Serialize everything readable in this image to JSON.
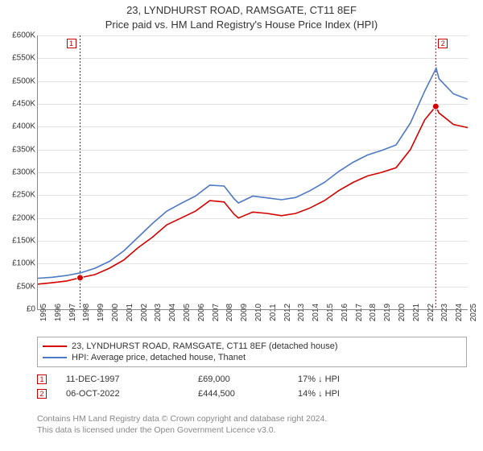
{
  "title_line1": "23, LYNDHURST ROAD, RAMSGATE, CT11 8EF",
  "title_line2": "Price paid vs. HM Land Registry's House Price Index (HPI)",
  "chart": {
    "type": "line",
    "x_min": 1995,
    "x_max": 2025,
    "x_ticks": [
      1995,
      1996,
      1997,
      1998,
      1999,
      2000,
      2001,
      2002,
      2003,
      2004,
      2005,
      2006,
      2007,
      2008,
      2009,
      2010,
      2011,
      2012,
      2013,
      2014,
      2015,
      2016,
      2017,
      2018,
      2019,
      2020,
      2021,
      2022,
      2023,
      2024,
      2025
    ],
    "y_min": 0,
    "y_max": 600,
    "y_ticks": [
      0,
      50,
      100,
      150,
      200,
      250,
      300,
      350,
      400,
      450,
      500,
      550,
      600
    ],
    "y_unit_prefix": "£",
    "y_unit_suffix": "K",
    "grid_color": "#e4e4e4",
    "axis_color": "#888",
    "background_color": "#ffffff",
    "tick_fontsize": 10,
    "series": [
      {
        "name": "price_paid",
        "label": "23, LYNDHURST ROAD, RAMSGATE, CT11 8EF (detached house)",
        "color": "#d40000",
        "line_width": 1.6,
        "x": [
          1995,
          1996,
          1997,
          1997.95,
          1999,
          2000,
          2001,
          2002,
          2003,
          2004,
          2005,
          2006,
          2007,
          2008,
          2008.7,
          2009,
          2010,
          2011,
          2012,
          2013,
          2014,
          2015,
          2016,
          2017,
          2018,
          2019,
          2020,
          2021,
          2022,
          2022.77,
          2023,
          2024,
          2025
        ],
        "y": [
          55,
          58,
          62,
          69,
          76,
          90,
          108,
          135,
          158,
          185,
          200,
          215,
          238,
          235,
          208,
          200,
          213,
          210,
          205,
          210,
          222,
          238,
          260,
          278,
          292,
          300,
          310,
          350,
          415,
          444.5,
          430,
          405,
          398
        ]
      },
      {
        "name": "hpi",
        "label": "HPI: Average price, detached house, Thanet",
        "color": "#4e79c4",
        "line_width": 1.6,
        "x": [
          1995,
          1996,
          1997,
          1998,
          1999,
          2000,
          2001,
          2002,
          2003,
          2004,
          2005,
          2006,
          2007,
          2008,
          2008.7,
          2009,
          2010,
          2011,
          2012,
          2013,
          2014,
          2015,
          2016,
          2017,
          2018,
          2019,
          2020,
          2021,
          2022,
          2022.8,
          2023,
          2024,
          2025
        ],
        "y": [
          68,
          70,
          74,
          80,
          90,
          105,
          128,
          158,
          188,
          215,
          232,
          248,
          272,
          270,
          242,
          233,
          248,
          244,
          240,
          245,
          260,
          278,
          302,
          322,
          338,
          348,
          360,
          408,
          478,
          528,
          505,
          472,
          460
        ]
      }
    ],
    "markers": [
      {
        "id": "1",
        "x": 1997.95,
        "y": 69,
        "label_side": "left",
        "vline_color": "#c00"
      },
      {
        "id": "2",
        "x": 2022.77,
        "y": 444.5,
        "label_side": "right",
        "vline_color": "#c00"
      }
    ]
  },
  "legend": {
    "series_a_label": "23, LYNDHURST ROAD, RAMSGATE, CT11 8EF (detached house)",
    "series_b_label": "HPI: Average price, detached house, Thanet"
  },
  "transactions": [
    {
      "id": "1",
      "date": "11-DEC-1997",
      "price": "£69,000",
      "pct": "17%",
      "arrow": "↓",
      "suffix": "HPI"
    },
    {
      "id": "2",
      "date": "06-OCT-2022",
      "price": "£444,500",
      "pct": "14%",
      "arrow": "↓",
      "suffix": "HPI"
    }
  ],
  "footer_line1": "Contains HM Land Registry data © Crown copyright and database right 2024.",
  "footer_line2": "This data is licensed under the Open Government Licence v3.0.",
  "colors": {
    "marker_border": "#c00",
    "text": "#333333",
    "muted": "#888888"
  }
}
